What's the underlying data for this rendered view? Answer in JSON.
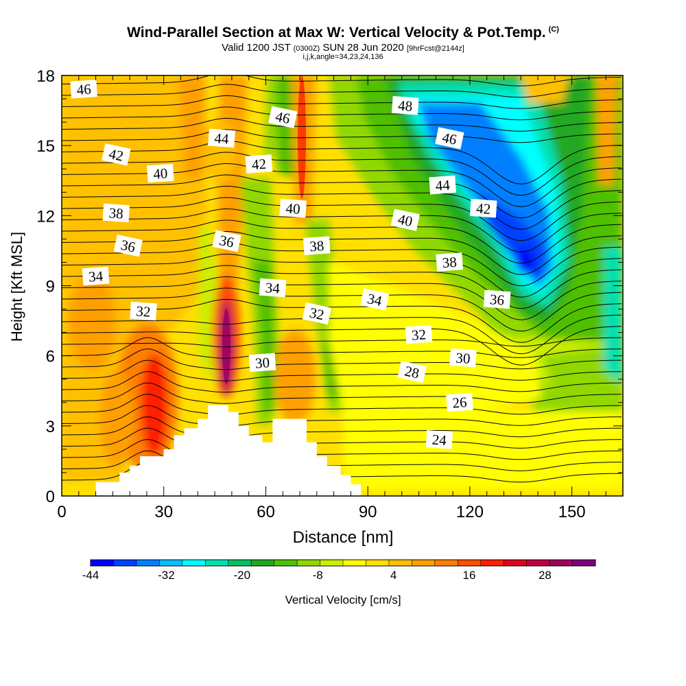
{
  "title": {
    "main": "Wind-Parallel Section at Max W: Vertical Velocity & Pot.Temp.",
    "copyright": "(C)",
    "valid_prefix": "Valid 1200 JST",
    "valid_utc": "(0300Z)",
    "valid_date": "SUN 28 Jun 2020",
    "forecast": "[9hrFcst@2144z]",
    "info": "i,j,k,angle=34,23,24,136"
  },
  "chart_data": {
    "type": "heatmap",
    "xlabel": "Distance [nm]",
    "ylabel": "Height [Kft MSL]",
    "xlim": [
      0,
      165
    ],
    "ylim": [
      0,
      18
    ],
    "x_ticks": [
      0,
      30,
      60,
      90,
      120,
      150
    ],
    "y_ticks": [
      0,
      3,
      6,
      9,
      12,
      15,
      18
    ],
    "colorbar": {
      "label": "Vertical Velocity [cm/s]",
      "min": -44,
      "max": 36,
      "step": 4,
      "tick_labels": [
        "-44",
        "-32",
        "-20",
        "-8",
        "4",
        "16",
        "28"
      ],
      "colors": [
        "#0000ff",
        "#0040ff",
        "#0080ff",
        "#00c0ff",
        "#00ffff",
        "#00e0b0",
        "#00c060",
        "#20a820",
        "#50c000",
        "#90d800",
        "#ccee00",
        "#ffff00",
        "#ffe000",
        "#ffc000",
        "#ffa000",
        "#ff8000",
        "#ff5000",
        "#ff2000",
        "#e00020",
        "#c00040",
        "#a00060",
        "#800080"
      ]
    },
    "isentrope_labels": [
      {
        "text": "46",
        "x": 6.5,
        "y": 17.4
      },
      {
        "text": "44",
        "x": 47.0,
        "y": 15.3
      },
      {
        "text": "42",
        "x": 16.0,
        "y": 14.6
      },
      {
        "text": "40",
        "x": 29.0,
        "y": 13.8
      },
      {
        "text": "38",
        "x": 16.0,
        "y": 12.1
      },
      {
        "text": "36",
        "x": 19.5,
        "y": 10.7
      },
      {
        "text": "34",
        "x": 10.0,
        "y": 9.4
      },
      {
        "text": "32",
        "x": 24.0,
        "y": 7.9
      },
      {
        "text": "46",
        "x": 65.0,
        "y": 16.2
      },
      {
        "text": "42",
        "x": 58.0,
        "y": 14.2
      },
      {
        "text": "40",
        "x": 68.0,
        "y": 12.3
      },
      {
        "text": "36",
        "x": 48.5,
        "y": 10.9
      },
      {
        "text": "38",
        "x": 75.0,
        "y": 10.7
      },
      {
        "text": "34",
        "x": 62.0,
        "y": 8.9
      },
      {
        "text": "32",
        "x": 75.0,
        "y": 7.8
      },
      {
        "text": "30",
        "x": 59.0,
        "y": 5.7
      },
      {
        "text": "48",
        "x": 101.0,
        "y": 16.7
      },
      {
        "text": "46",
        "x": 114.0,
        "y": 15.3
      },
      {
        "text": "44",
        "x": 112.0,
        "y": 13.3
      },
      {
        "text": "42",
        "x": 124.0,
        "y": 12.3
      },
      {
        "text": "40",
        "x": 101.0,
        "y": 11.8
      },
      {
        "text": "38",
        "x": 114.0,
        "y": 10.0
      },
      {
        "text": "36",
        "x": 128.0,
        "y": 8.4
      },
      {
        "text": "34",
        "x": 92.0,
        "y": 8.4
      },
      {
        "text": "32",
        "x": 105.0,
        "y": 6.9
      },
      {
        "text": "30",
        "x": 118.0,
        "y": 5.9
      },
      {
        "text": "28",
        "x": 103.0,
        "y": 5.3
      },
      {
        "text": "26",
        "x": 117.0,
        "y": 4.0
      },
      {
        "text": "24",
        "x": 111.0,
        "y": 2.4
      }
    ],
    "terrain_profile": [
      [
        10,
        0
      ],
      [
        10,
        0.6
      ],
      [
        17,
        0.6
      ],
      [
        17,
        1.0
      ],
      [
        20,
        1.0
      ],
      [
        20,
        1.3
      ],
      [
        23,
        1.3
      ],
      [
        23,
        1.7
      ],
      [
        30,
        1.7
      ],
      [
        30,
        2.0
      ],
      [
        33,
        2.0
      ],
      [
        33,
        2.6
      ],
      [
        36,
        2.6
      ],
      [
        36,
        2.9
      ],
      [
        40,
        2.9
      ],
      [
        40,
        3.3
      ],
      [
        43,
        3.3
      ],
      [
        43,
        3.9
      ],
      [
        49,
        3.9
      ],
      [
        49,
        3.6
      ],
      [
        52,
        3.6
      ],
      [
        52,
        3.0
      ],
      [
        55,
        3.0
      ],
      [
        55,
        2.6
      ],
      [
        59,
        2.6
      ],
      [
        59,
        2.3
      ],
      [
        62,
        2.3
      ],
      [
        62,
        3.3
      ],
      [
        72,
        3.3
      ],
      [
        72,
        2.3
      ],
      [
        75,
        2.3
      ],
      [
        75,
        1.7
      ],
      [
        78,
        1.7
      ],
      [
        78,
        1.3
      ],
      [
        82,
        1.3
      ],
      [
        82,
        0.9
      ],
      [
        85,
        0.9
      ],
      [
        85,
        0.5
      ],
      [
        88,
        0.5
      ],
      [
        88,
        0
      ]
    ]
  }
}
